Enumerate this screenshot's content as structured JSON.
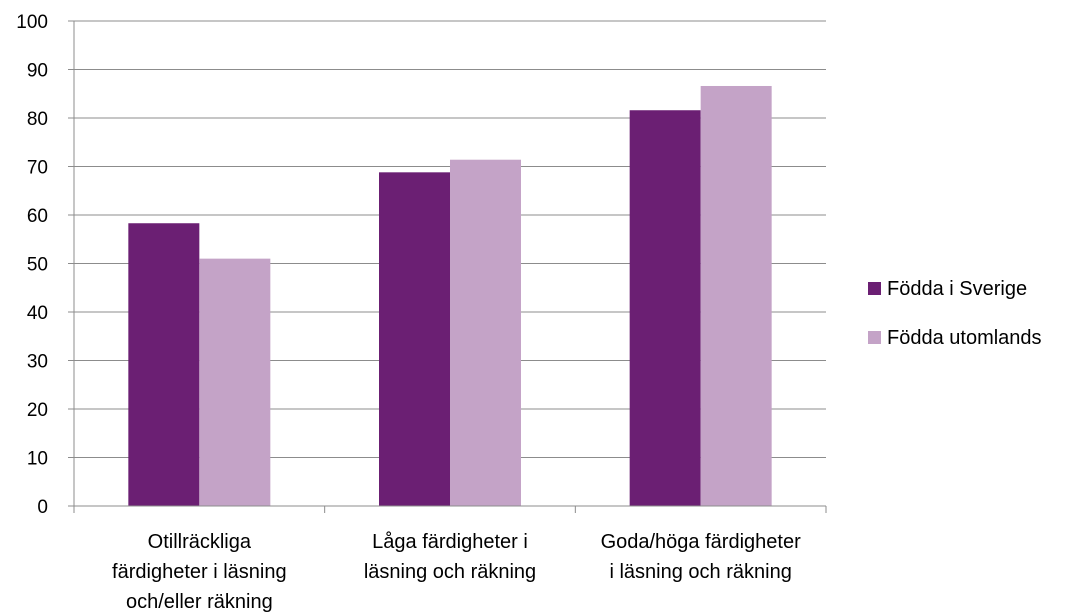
{
  "chart_data": {
    "type": "bar",
    "categories": [
      [
        "Otillräckliga",
        "färdigheter i läsning",
        "och/eller räkning"
      ],
      [
        "Låga färdigheter i",
        "läsning och räkning"
      ],
      [
        "Goda/höga färdigheter",
        "i läsning och räkning"
      ]
    ],
    "series": [
      {
        "name": "Födda i Sverige",
        "values": [
          58.3,
          68.8,
          81.6
        ],
        "color": "#6b1f73"
      },
      {
        "name": "Födda utomlands",
        "values": [
          51.0,
          71.4,
          86.6
        ],
        "color": "#c4a3c7"
      }
    ],
    "yticks": [
      "0",
      "10",
      "20",
      "30",
      "40",
      "50",
      "60",
      "70",
      "80",
      "90",
      "100"
    ],
    "ylim": [
      0,
      100
    ],
    "grid": true,
    "legend_position": "right"
  }
}
